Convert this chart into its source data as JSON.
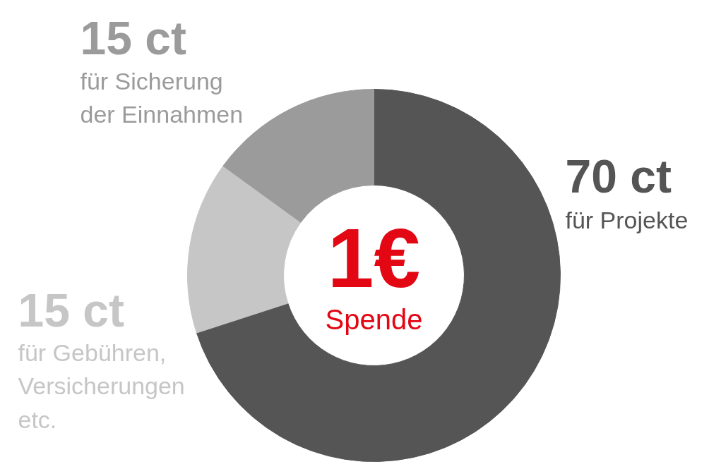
{
  "chart_data": {
    "type": "donut",
    "categories": [
      "für Projekte",
      "für Gebühren,\nVersicherungen\netc.",
      "für Sicherung\nder Einnahmen"
    ],
    "values": [
      70,
      15,
      15
    ],
    "colors": [
      "#555555",
      "#c6c6c6",
      "#9b9b9b"
    ],
    "value_labels": [
      "70 ct",
      "15 ct",
      "15 ct"
    ],
    "annotations": [
      "1€",
      "Spende"
    ]
  }
}
